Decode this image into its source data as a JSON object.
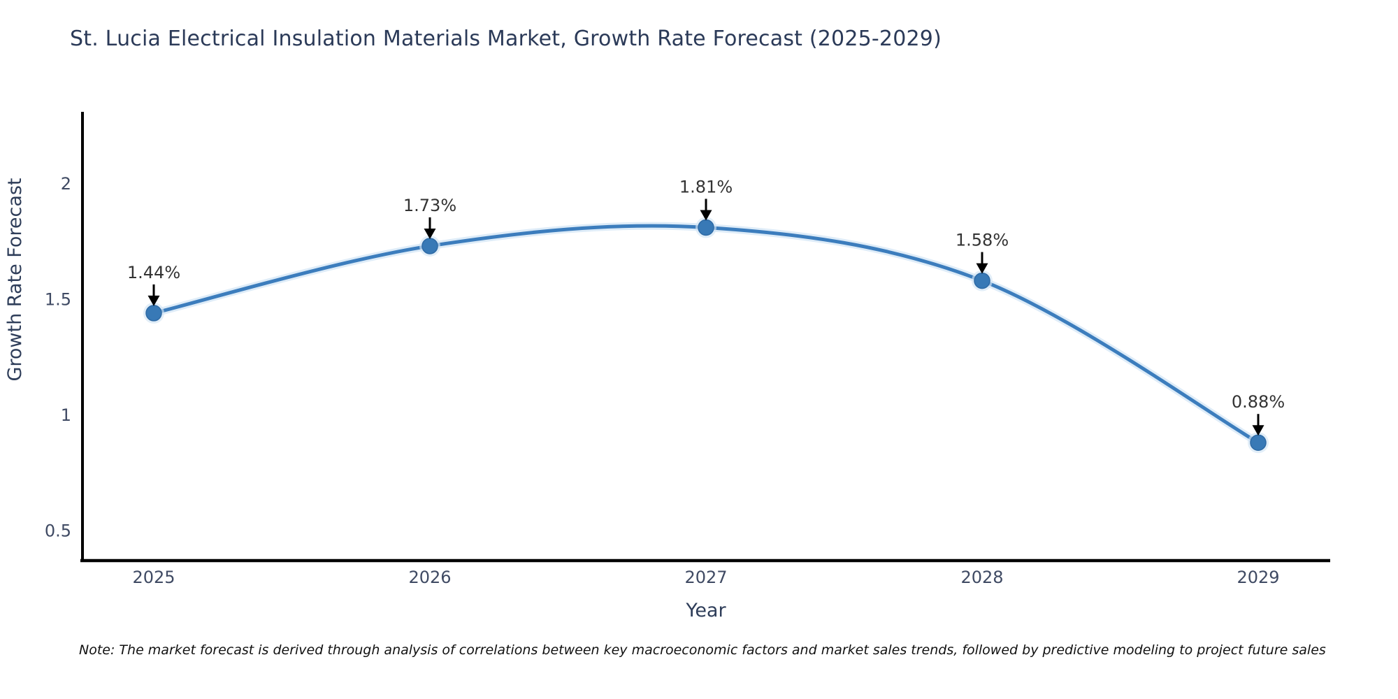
{
  "page": {
    "note": "Note: The market forecast is derived through analysis of correlations between key macroeconomic factors and market sales trends, followed by predictive modeling to project future sales"
  },
  "chart_data": {
    "type": "line",
    "title": "St. Lucia Electrical Insulation Materials Market, Growth Rate Forecast (2025-2029)",
    "xlabel": "Year",
    "ylabel": "Growth Rate Forecast",
    "x": [
      2025,
      2026,
      2027,
      2028,
      2029
    ],
    "x_tick_labels": [
      "2025",
      "2026",
      "2027",
      "2028",
      "2029"
    ],
    "series": [
      {
        "name": "Growth Rate Forecast",
        "values": [
          1.44,
          1.73,
          1.81,
          1.58,
          0.88
        ],
        "point_labels": [
          "1.44%",
          "1.73%",
          "1.81%",
          "1.58%",
          "0.88%"
        ]
      }
    ],
    "yticks": [
      0.5,
      1,
      1.5,
      2
    ],
    "ytick_labels": [
      "0.5",
      "1",
      "1.5",
      "2"
    ],
    "ylim": [
      0.37,
      2.31
    ],
    "grid": false,
    "legend_position": "none",
    "line_shape": "spline",
    "annotation_style": "arrow-down-to-point",
    "colors": {
      "line": "#3c7dbd",
      "line_halo": "#d3e5f5",
      "marker_fill": "#3879b6",
      "marker_edge": "#2e6aa5",
      "axis_line": "#000000",
      "title_text": "#2b3a58",
      "axis_title_text": "#2e3d59",
      "tick_text": "#3f4a63",
      "annotation_text": "#333333",
      "arrow": "#000000"
    }
  }
}
